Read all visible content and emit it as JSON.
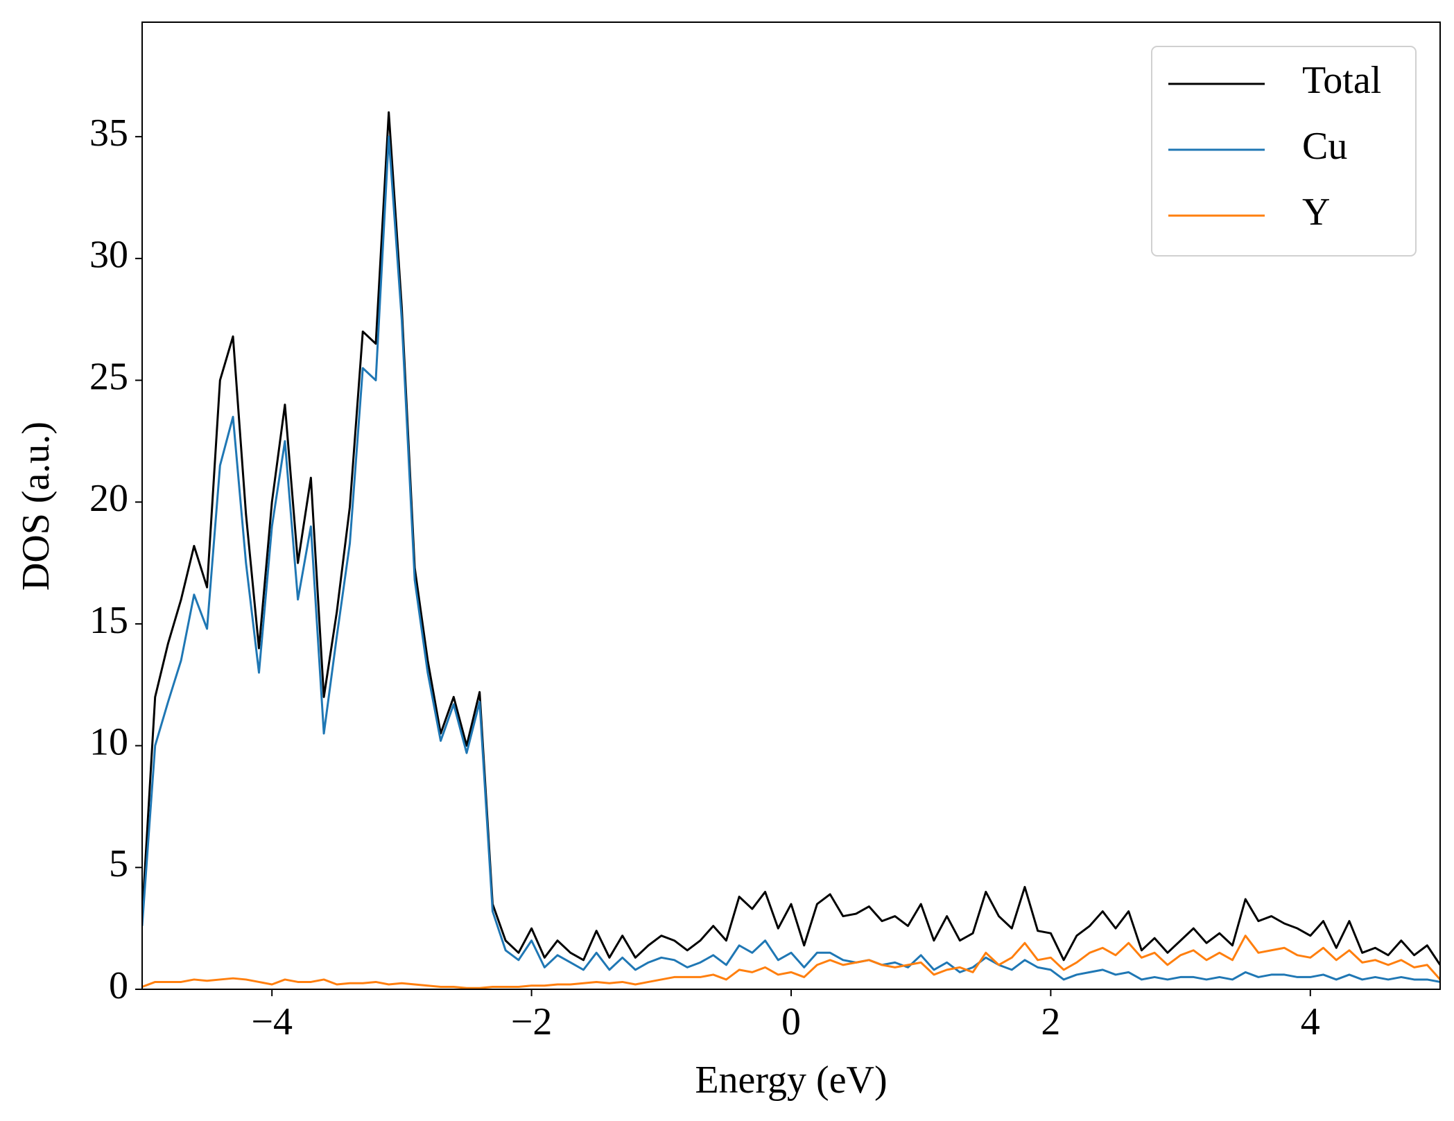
{
  "chart_data": {
    "type": "line",
    "xlabel": "Energy (eV)",
    "ylabel": "DOS (a.u.)",
    "x": [
      -5.0,
      -4.9,
      -4.8,
      -4.7,
      -4.6,
      -4.5,
      -4.4,
      -4.3,
      -4.2,
      -4.1,
      -4.0,
      -3.9,
      -3.8,
      -3.7,
      -3.6,
      -3.5,
      -3.4,
      -3.3,
      -3.2,
      -3.1,
      -3.0,
      -2.9,
      -2.8,
      -2.7,
      -2.6,
      -2.5,
      -2.4,
      -2.3,
      -2.2,
      -2.1,
      -2.0,
      -1.9,
      -1.8,
      -1.7,
      -1.6,
      -1.5,
      -1.4,
      -1.3,
      -1.2,
      -1.1,
      -1.0,
      -0.9,
      -0.8,
      -0.7,
      -0.6,
      -0.5,
      -0.4,
      -0.3,
      -0.2,
      -0.1,
      0.0,
      0.1,
      0.2,
      0.3,
      0.4,
      0.5,
      0.6,
      0.7,
      0.8,
      0.9,
      1.0,
      1.1,
      1.2,
      1.3,
      1.4,
      1.5,
      1.6,
      1.7,
      1.8,
      1.9,
      2.0,
      2.1,
      2.2,
      2.3,
      2.4,
      2.5,
      2.6,
      2.7,
      2.8,
      2.9,
      3.0,
      3.1,
      3.2,
      3.3,
      3.4,
      3.5,
      3.6,
      3.7,
      3.8,
      3.9,
      4.0,
      4.1,
      4.2,
      4.3,
      4.4,
      4.5,
      4.6,
      4.7,
      4.8,
      4.9,
      5.0
    ],
    "series": [
      {
        "name": "Total",
        "color": "#000000",
        "values": [
          3,
          12,
          14.2,
          16,
          18.2,
          16.5,
          25,
          26.8,
          19.5,
          14,
          20,
          24,
          17.5,
          21,
          12,
          15.5,
          19.8,
          27,
          26.5,
          36,
          28,
          17.3,
          13.5,
          10.5,
          12,
          10,
          12.2,
          3.5,
          2.0,
          1.5,
          2.5,
          1.3,
          2.0,
          1.5,
          1.2,
          2.4,
          1.3,
          2.2,
          1.3,
          1.8,
          2.2,
          2.0,
          1.6,
          2.0,
          2.6,
          2.0,
          3.8,
          3.3,
          4.0,
          2.5,
          3.5,
          1.8,
          3.5,
          3.9,
          3.0,
          3.1,
          3.4,
          2.8,
          3.0,
          2.6,
          3.5,
          2.0,
          3.0,
          2.0,
          2.3,
          4.0,
          3.0,
          2.5,
          4.2,
          2.4,
          2.3,
          1.2,
          2.2,
          2.6,
          3.2,
          2.5,
          3.2,
          1.6,
          2.1,
          1.5,
          2.0,
          2.5,
          1.9,
          2.3,
          1.8,
          3.7,
          2.8,
          3.0,
          2.7,
          2.5,
          2.2,
          2.8,
          1.7,
          2.8,
          1.5,
          1.7,
          1.4,
          2.0,
          1.4,
          1.8,
          1.0
        ]
      },
      {
        "name": "Cu",
        "color": "#1f77b4",
        "values": [
          2.6,
          10,
          11.8,
          13.5,
          16.2,
          14.8,
          21.5,
          23.5,
          17.5,
          13,
          19,
          22.5,
          16,
          19,
          10.5,
          14.5,
          18.3,
          25.5,
          25,
          35,
          27.5,
          16.8,
          13,
          10.2,
          11.7,
          9.7,
          11.8,
          3.2,
          1.6,
          1.2,
          2.0,
          0.9,
          1.4,
          1.1,
          0.8,
          1.5,
          0.8,
          1.3,
          0.8,
          1.1,
          1.3,
          1.2,
          0.9,
          1.1,
          1.4,
          1.0,
          1.8,
          1.5,
          2.0,
          1.2,
          1.5,
          0.9,
          1.5,
          1.5,
          1.2,
          1.1,
          1.2,
          1.0,
          1.1,
          0.9,
          1.4,
          0.8,
          1.1,
          0.7,
          0.9,
          1.3,
          1.0,
          0.8,
          1.2,
          0.9,
          0.8,
          0.4,
          0.6,
          0.7,
          0.8,
          0.6,
          0.7,
          0.4,
          0.5,
          0.4,
          0.5,
          0.5,
          0.4,
          0.5,
          0.4,
          0.7,
          0.5,
          0.6,
          0.6,
          0.5,
          0.5,
          0.6,
          0.4,
          0.6,
          0.4,
          0.5,
          0.4,
          0.5,
          0.4,
          0.4,
          0.3
        ]
      },
      {
        "name": "Y",
        "color": "#ff7f0e",
        "values": [
          0.1,
          0.3,
          0.3,
          0.3,
          0.4,
          0.35,
          0.4,
          0.45,
          0.4,
          0.3,
          0.2,
          0.4,
          0.3,
          0.3,
          0.4,
          0.2,
          0.25,
          0.25,
          0.3,
          0.2,
          0.25,
          0.2,
          0.15,
          0.1,
          0.1,
          0.05,
          0.05,
          0.1,
          0.1,
          0.1,
          0.15,
          0.15,
          0.2,
          0.2,
          0.25,
          0.3,
          0.25,
          0.3,
          0.2,
          0.3,
          0.4,
          0.5,
          0.5,
          0.5,
          0.6,
          0.4,
          0.8,
          0.7,
          0.9,
          0.6,
          0.7,
          0.5,
          1.0,
          1.2,
          1.0,
          1.1,
          1.2,
          1.0,
          0.9,
          1.0,
          1.1,
          0.6,
          0.8,
          0.9,
          0.7,
          1.5,
          1.0,
          1.3,
          1.9,
          1.2,
          1.3,
          0.8,
          1.1,
          1.5,
          1.7,
          1.4,
          1.9,
          1.3,
          1.5,
          1.0,
          1.4,
          1.6,
          1.2,
          1.5,
          1.2,
          2.2,
          1.5,
          1.6,
          1.7,
          1.4,
          1.3,
          1.7,
          1.2,
          1.6,
          1.1,
          1.2,
          1.0,
          1.2,
          0.9,
          1.0,
          0.4
        ]
      }
    ],
    "xlim": [
      -5,
      5
    ],
    "ylim": [
      0,
      39.7
    ],
    "xticks": [
      {
        "value": -4,
        "label": "−4"
      },
      {
        "value": -2,
        "label": "−2"
      },
      0,
      2,
      4
    ],
    "yticks": [
      0,
      5,
      10,
      15,
      20,
      25,
      30,
      35
    ],
    "grid": false,
    "legend": "upper right"
  }
}
